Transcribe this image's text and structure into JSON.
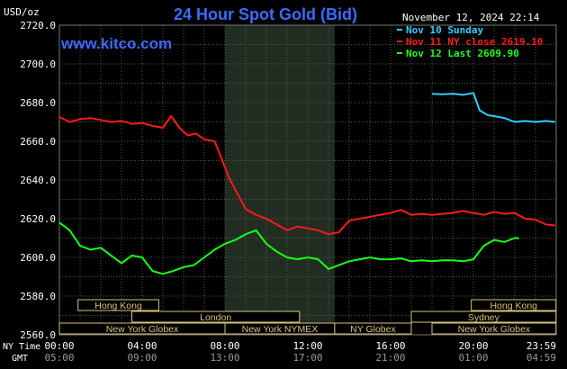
{
  "header": {
    "unit": "USD/oz",
    "title": "24 Hour Spot Gold (Bid)",
    "site": "www.kitco.com",
    "date": "November 12, 2024 22:14"
  },
  "chart_data": {
    "type": "line",
    "title": "24 Hour Spot Gold (Bid)",
    "ylabel": "USD/oz",
    "ylim": [
      2560,
      2720
    ],
    "yticks": [
      "2720.0",
      "2700.0",
      "2680.0",
      "2660.0",
      "2640.0",
      "2620.0",
      "2600.0",
      "2580.0",
      "2560.0"
    ],
    "x_labels_ny": [
      "00:00",
      "04:00",
      "08:00",
      "12:00",
      "16:00",
      "20:00",
      "23:59"
    ],
    "x_labels_gmt": [
      "05:00",
      "09:00",
      "13:00",
      "17:00",
      "21:00",
      "01:00",
      "04:59"
    ],
    "x_axis_titles": [
      "NY Time",
      "GMT"
    ],
    "grid": true,
    "legend_position": "top-right",
    "series": [
      {
        "name": "Nov 10 Sunday",
        "color": "#33ccff",
        "points": [
          [
            18.0,
            2684.5
          ],
          [
            18.5,
            2684.3
          ],
          [
            19.0,
            2684.6
          ],
          [
            19.5,
            2684.0
          ],
          [
            20.0,
            2685.0
          ],
          [
            20.3,
            2676.0
          ],
          [
            20.7,
            2673.5
          ],
          [
            21.0,
            2673.0
          ],
          [
            21.5,
            2672.0
          ],
          [
            22.0,
            2670.0
          ],
          [
            22.5,
            2670.5
          ],
          [
            23.0,
            2670.0
          ],
          [
            23.5,
            2670.5
          ],
          [
            23.95,
            2670.0
          ]
        ]
      },
      {
        "name": "Nov 11 NY close 2619.10",
        "color": "#ff1a1a",
        "points": [
          [
            0.0,
            2672.5
          ],
          [
            0.5,
            2670.0
          ],
          [
            1.0,
            2671.5
          ],
          [
            1.5,
            2672.0
          ],
          [
            2.0,
            2671.0
          ],
          [
            2.5,
            2670.0
          ],
          [
            3.0,
            2670.5
          ],
          [
            3.5,
            2669.0
          ],
          [
            4.0,
            2669.5
          ],
          [
            4.5,
            2668.0
          ],
          [
            5.0,
            2667.0
          ],
          [
            5.4,
            2673.0
          ],
          [
            5.8,
            2667.0
          ],
          [
            6.2,
            2663.0
          ],
          [
            6.6,
            2664.0
          ],
          [
            7.0,
            2661.0
          ],
          [
            7.5,
            2660.0
          ],
          [
            7.8,
            2652.0
          ],
          [
            8.2,
            2641.0
          ],
          [
            8.6,
            2633.0
          ],
          [
            9.0,
            2625.0
          ],
          [
            9.5,
            2622.0
          ],
          [
            10.0,
            2620.0
          ],
          [
            10.5,
            2617.0
          ],
          [
            11.0,
            2614.0
          ],
          [
            11.5,
            2616.0
          ],
          [
            12.0,
            2615.0
          ],
          [
            12.5,
            2614.0
          ],
          [
            13.0,
            2612.0
          ],
          [
            13.5,
            2613.0
          ],
          [
            14.0,
            2619.0
          ],
          [
            14.5,
            2620.0
          ],
          [
            15.0,
            2621.0
          ],
          [
            15.5,
            2622.0
          ],
          [
            16.0,
            2623.0
          ],
          [
            16.5,
            2624.5
          ],
          [
            17.0,
            2622.0
          ],
          [
            17.5,
            2622.5
          ],
          [
            18.0,
            2622.0
          ],
          [
            18.5,
            2622.5
          ],
          [
            19.0,
            2623.0
          ],
          [
            19.5,
            2624.0
          ],
          [
            20.0,
            2623.0
          ],
          [
            20.5,
            2622.0
          ],
          [
            21.0,
            2623.5
          ],
          [
            21.5,
            2622.5
          ],
          [
            22.0,
            2623.0
          ],
          [
            22.5,
            2620.0
          ],
          [
            23.0,
            2619.5
          ],
          [
            23.5,
            2617.0
          ],
          [
            23.95,
            2616.5
          ]
        ]
      },
      {
        "name": "Nov 12 Last 2609.90",
        "color": "#1aff1a",
        "points": [
          [
            0.0,
            2618.0
          ],
          [
            0.5,
            2614.0
          ],
          [
            1.0,
            2606.0
          ],
          [
            1.5,
            2604.0
          ],
          [
            2.0,
            2605.0
          ],
          [
            2.5,
            2601.0
          ],
          [
            3.0,
            2597.0
          ],
          [
            3.5,
            2601.0
          ],
          [
            4.0,
            2600.0
          ],
          [
            4.5,
            2593.0
          ],
          [
            5.0,
            2591.5
          ],
          [
            5.5,
            2593.0
          ],
          [
            6.0,
            2595.0
          ],
          [
            6.5,
            2596.0
          ],
          [
            7.0,
            2600.0
          ],
          [
            7.5,
            2604.0
          ],
          [
            8.0,
            2607.0
          ],
          [
            8.5,
            2609.0
          ],
          [
            9.0,
            2612.0
          ],
          [
            9.5,
            2614.0
          ],
          [
            10.0,
            2607.0
          ],
          [
            10.5,
            2603.0
          ],
          [
            11.0,
            2600.0
          ],
          [
            11.5,
            2599.0
          ],
          [
            12.0,
            2600.0
          ],
          [
            12.5,
            2599.0
          ],
          [
            13.0,
            2594.0
          ],
          [
            13.5,
            2596.0
          ],
          [
            14.0,
            2598.0
          ],
          [
            14.5,
            2599.0
          ],
          [
            15.0,
            2600.0
          ],
          [
            15.5,
            2599.0
          ],
          [
            16.0,
            2599.0
          ],
          [
            16.5,
            2599.5
          ],
          [
            17.0,
            2598.0
          ],
          [
            17.5,
            2598.5
          ],
          [
            18.0,
            2598.0
          ],
          [
            18.5,
            2598.5
          ],
          [
            19.0,
            2598.5
          ],
          [
            19.5,
            2598.0
          ],
          [
            20.0,
            2599.0
          ],
          [
            20.5,
            2606.0
          ],
          [
            21.0,
            2609.0
          ],
          [
            21.5,
            2608.0
          ],
          [
            22.0,
            2610.0
          ],
          [
            22.2,
            2609.9
          ]
        ]
      }
    ],
    "ny_session_shade": [
      8.0,
      13.3
    ]
  },
  "sessions": {
    "row1": [
      "Hong Kong",
      "Hong Kong"
    ],
    "row2": [
      "London",
      "Sydney"
    ],
    "row3": [
      "New York Globex",
      "New York NYMEX",
      "NY Globex",
      "New York Globex"
    ]
  }
}
